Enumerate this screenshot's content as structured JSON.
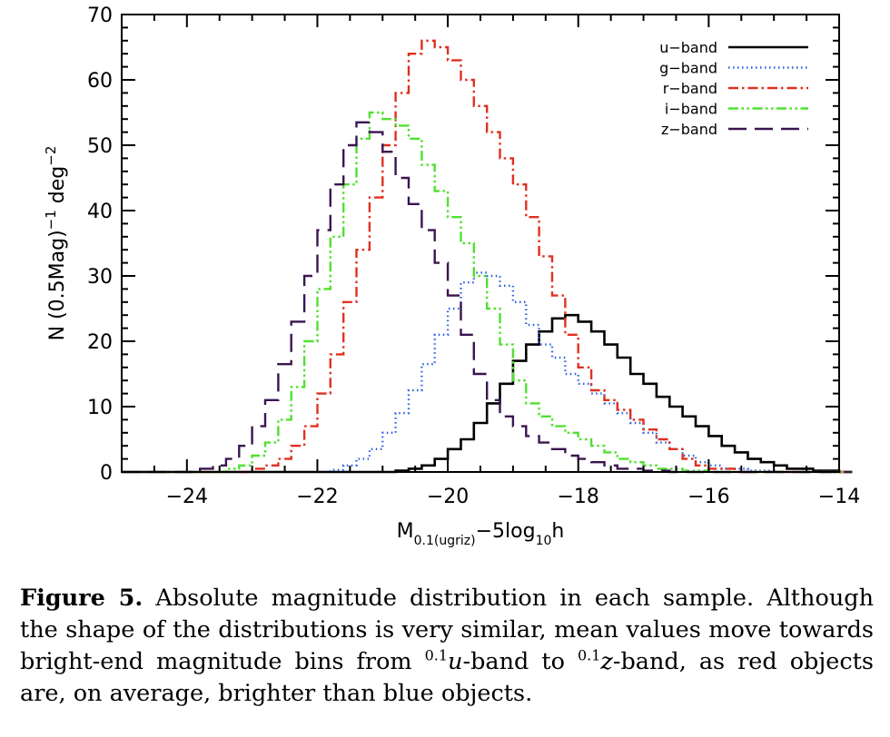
{
  "chart_data": {
    "type": "line",
    "style": "step histogram",
    "xlabel": {
      "main": "M",
      "sub": "0.1(ugriz)",
      "mid": "−5log",
      "sub2": "10",
      "end": "h"
    },
    "ylabel": {
      "main": "N (0.5Mag)",
      "sup1": "−1",
      "mid": " deg",
      "sup2": "−2"
    },
    "xlim": [
      -25,
      -14
    ],
    "ylim": [
      0,
      70
    ],
    "xticks": [
      -24,
      -22,
      -20,
      -18,
      -16,
      -14
    ],
    "xtick_labels": [
      "−24",
      "−22",
      "−20",
      "−18",
      "−16",
      "−14"
    ],
    "yticks": [
      0,
      10,
      20,
      30,
      40,
      50,
      60,
      70
    ],
    "ytick_labels": [
      "0",
      "10",
      "20",
      "30",
      "40",
      "50",
      "60",
      "70"
    ],
    "bin_width": 0.2,
    "legend_position": "top-right",
    "series": [
      {
        "name": "u−band",
        "color": "#000000",
        "dash": "solid",
        "points": [
          [
            -25,
            0
          ],
          [
            -21.2,
            0
          ],
          [
            -20.8,
            0.2
          ],
          [
            -20.6,
            0.5
          ],
          [
            -20.4,
            1
          ],
          [
            -20.2,
            2
          ],
          [
            -20,
            3.5
          ],
          [
            -19.8,
            5
          ],
          [
            -19.6,
            7.5
          ],
          [
            -19.4,
            10.5
          ],
          [
            -19.2,
            13.5
          ],
          [
            -19,
            17
          ],
          [
            -18.8,
            19.5
          ],
          [
            -18.6,
            21.5
          ],
          [
            -18.4,
            23.5
          ],
          [
            -18.2,
            24
          ],
          [
            -18,
            23
          ],
          [
            -17.8,
            21.5
          ],
          [
            -17.6,
            19.5
          ],
          [
            -17.4,
            17.5
          ],
          [
            -17.2,
            15
          ],
          [
            -17,
            13.5
          ],
          [
            -16.8,
            11.5
          ],
          [
            -16.6,
            10
          ],
          [
            -16.4,
            8.5
          ],
          [
            -16.2,
            7
          ],
          [
            -16,
            5.5
          ],
          [
            -15.8,
            4
          ],
          [
            -15.6,
            3
          ],
          [
            -15.4,
            2
          ],
          [
            -15.2,
            1.5
          ],
          [
            -15,
            1
          ],
          [
            -14.8,
            0.5
          ],
          [
            -14.4,
            0.2
          ],
          [
            -14,
            0
          ]
        ]
      },
      {
        "name": "g−band",
        "color": "#2a5fe0",
        "dash": "dotted",
        "points": [
          [
            -25,
            0
          ],
          [
            -22.2,
            0
          ],
          [
            -21.8,
            0.3
          ],
          [
            -21.6,
            1
          ],
          [
            -21.4,
            2
          ],
          [
            -21.2,
            3.5
          ],
          [
            -21,
            6
          ],
          [
            -20.8,
            9
          ],
          [
            -20.6,
            12.5
          ],
          [
            -20.4,
            16.5
          ],
          [
            -20.2,
            21
          ],
          [
            -20,
            25
          ],
          [
            -19.8,
            29
          ],
          [
            -19.6,
            30.5
          ],
          [
            -19.4,
            30
          ],
          [
            -19.2,
            28.5
          ],
          [
            -19,
            26
          ],
          [
            -18.8,
            22.5
          ],
          [
            -18.6,
            19.5
          ],
          [
            -18.4,
            17.5
          ],
          [
            -18.2,
            15
          ],
          [
            -18,
            13.5
          ],
          [
            -17.8,
            12
          ],
          [
            -17.6,
            10.5
          ],
          [
            -17.4,
            9
          ],
          [
            -17.2,
            7.5
          ],
          [
            -17,
            6
          ],
          [
            -16.8,
            4.5
          ],
          [
            -16.6,
            3.5
          ],
          [
            -16.4,
            2.5
          ],
          [
            -16.2,
            1.5
          ],
          [
            -16,
            1
          ],
          [
            -15.8,
            0.5
          ],
          [
            -15.4,
            0.2
          ],
          [
            -15,
            0
          ]
        ]
      },
      {
        "name": "r−band",
        "color": "#e03020",
        "dash": "dash-dot",
        "points": [
          [
            -25,
            0
          ],
          [
            -23.2,
            0
          ],
          [
            -23,
            0.5
          ],
          [
            -22.8,
            1
          ],
          [
            -22.6,
            2
          ],
          [
            -22.4,
            4
          ],
          [
            -22.2,
            7
          ],
          [
            -22,
            12
          ],
          [
            -21.8,
            18
          ],
          [
            -21.6,
            26
          ],
          [
            -21.4,
            34
          ],
          [
            -21.2,
            42
          ],
          [
            -21,
            50
          ],
          [
            -20.8,
            58
          ],
          [
            -20.6,
            64
          ],
          [
            -20.4,
            66
          ],
          [
            -20.2,
            65
          ],
          [
            -20,
            63
          ],
          [
            -19.8,
            60
          ],
          [
            -19.6,
            56
          ],
          [
            -19.4,
            52
          ],
          [
            -19.2,
            48
          ],
          [
            -19,
            44
          ],
          [
            -18.8,
            39
          ],
          [
            -18.6,
            33
          ],
          [
            -18.4,
            27
          ],
          [
            -18.2,
            21
          ],
          [
            -18,
            16
          ],
          [
            -17.8,
            12.5
          ],
          [
            -17.6,
            11
          ],
          [
            -17.4,
            9.5
          ],
          [
            -17.2,
            8
          ],
          [
            -17,
            6.5
          ],
          [
            -16.8,
            5
          ],
          [
            -16.6,
            3.5
          ],
          [
            -16.4,
            2
          ],
          [
            -16.2,
            1
          ],
          [
            -16,
            0.5
          ],
          [
            -15.6,
            0
          ],
          [
            -14,
            0
          ]
        ]
      },
      {
        "name": "i−band",
        "color": "#50e030",
        "dash": "dash-dot-dot",
        "points": [
          [
            -25,
            0
          ],
          [
            -23.6,
            0
          ],
          [
            -23.4,
            0.5
          ],
          [
            -23.2,
            1
          ],
          [
            -23,
            2.5
          ],
          [
            -22.8,
            4.5
          ],
          [
            -22.6,
            8
          ],
          [
            -22.4,
            13
          ],
          [
            -22.2,
            20
          ],
          [
            -22,
            28
          ],
          [
            -21.8,
            36
          ],
          [
            -21.6,
            44
          ],
          [
            -21.4,
            51
          ],
          [
            -21.2,
            55
          ],
          [
            -21,
            54
          ],
          [
            -20.8,
            53
          ],
          [
            -20.6,
            51
          ],
          [
            -20.4,
            47
          ],
          [
            -20.2,
            43
          ],
          [
            -20,
            39
          ],
          [
            -19.8,
            35
          ],
          [
            -19.6,
            30
          ],
          [
            -19.4,
            25
          ],
          [
            -19.2,
            19.5
          ],
          [
            -19,
            14
          ],
          [
            -18.8,
            10.5
          ],
          [
            -18.6,
            8.5
          ],
          [
            -18.4,
            7
          ],
          [
            -18.2,
            6
          ],
          [
            -18,
            5
          ],
          [
            -17.8,
            4
          ],
          [
            -17.6,
            3
          ],
          [
            -17.4,
            2
          ],
          [
            -17.2,
            1.5
          ],
          [
            -17,
            1
          ],
          [
            -16.8,
            0.5
          ],
          [
            -16.4,
            0.2
          ],
          [
            -16,
            0
          ],
          [
            -14,
            0
          ]
        ]
      },
      {
        "name": "z−band",
        "color": "#3a1550",
        "dash": "long-dash",
        "points": [
          [
            -25,
            0
          ],
          [
            -24,
            0
          ],
          [
            -23.8,
            0.5
          ],
          [
            -23.6,
            1
          ],
          [
            -23.4,
            2
          ],
          [
            -23.2,
            4
          ],
          [
            -23,
            7
          ],
          [
            -22.8,
            11
          ],
          [
            -22.6,
            16.5
          ],
          [
            -22.4,
            23
          ],
          [
            -22.2,
            30
          ],
          [
            -22,
            37
          ],
          [
            -21.8,
            44
          ],
          [
            -21.6,
            50
          ],
          [
            -21.4,
            53.5
          ],
          [
            -21.2,
            52
          ],
          [
            -21,
            49
          ],
          [
            -20.8,
            45
          ],
          [
            -20.6,
            41
          ],
          [
            -20.4,
            37
          ],
          [
            -20.2,
            32
          ],
          [
            -20,
            27
          ],
          [
            -19.8,
            21
          ],
          [
            -19.6,
            15
          ],
          [
            -19.4,
            11
          ],
          [
            -19.2,
            8.5
          ],
          [
            -19,
            7
          ],
          [
            -18.8,
            5.5
          ],
          [
            -18.6,
            4.5
          ],
          [
            -18.4,
            3.5
          ],
          [
            -18.2,
            2.5
          ],
          [
            -18,
            2
          ],
          [
            -17.8,
            1.5
          ],
          [
            -17.6,
            1
          ],
          [
            -17.4,
            0.5
          ],
          [
            -17,
            0.2
          ],
          [
            -16.6,
            0
          ],
          [
            -14,
            0
          ]
        ]
      }
    ]
  },
  "caption": {
    "label": "Figure 5.",
    "text_1": " Absolute magnitude distribution in each sample. Although the shape of the distributions is very similar, mean values move towards bright-end magnitude bins from ",
    "sup_1": "0.1",
    "band_1": "u",
    "text_2": "-band to ",
    "sup_2": "0.1",
    "band_2": "z",
    "text_3": "-band, as red objects are, on average, brighter than blue objects."
  }
}
